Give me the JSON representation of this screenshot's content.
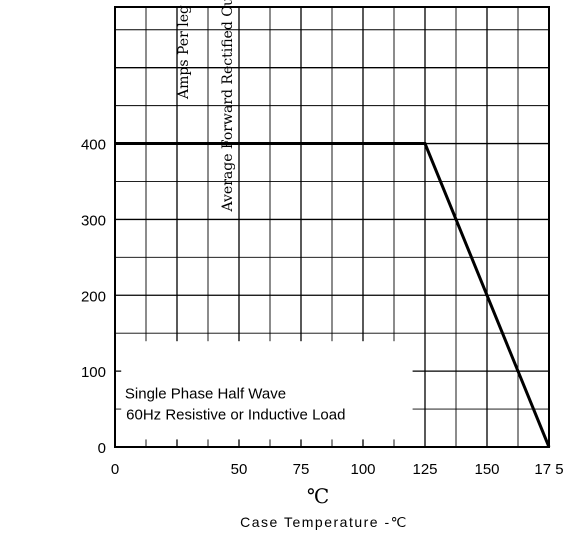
{
  "chart_data": {
    "type": "line",
    "xlabel": "Case Temperature  -℃",
    "ylabel_line1": "Average Forward Rectified Current-Amperes versus",
    "ylabel_line2": "Amps  Per leg",
    "unit_symbol": "℃",
    "annotation_line1": "Single  Phase  Half  Wave",
    "annotation_line2": "60Hz  Resistive   or Inductive Load",
    "xlim": [
      0,
      175
    ],
    "ylim": [
      0,
      580
    ],
    "x_ticks": [
      0,
      50,
      75,
      100,
      125,
      150,
      175
    ],
    "x_tick_labels": [
      "0",
      "50",
      "75",
      "100",
      "125",
      "150",
      "17 5"
    ],
    "y_ticks": [
      0,
      100,
      200,
      300,
      400
    ],
    "y_tick_labels": [
      "0",
      "100",
      "200",
      "300",
      "400"
    ],
    "grid": true,
    "series": [
      {
        "x": [
          0,
          125,
          175
        ],
        "y": [
          400,
          400,
          0
        ]
      }
    ]
  }
}
